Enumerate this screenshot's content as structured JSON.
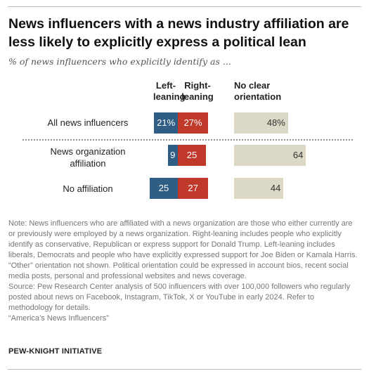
{
  "title": "News influencers with a news industry affiliation are less likely to explicitly express a political lean",
  "subtitle": "% of news influencers who explicitly identify as ...",
  "colors": {
    "left": "#2f5d84",
    "right": "#c0392b",
    "none": "#dcd8c8"
  },
  "chart_data": {
    "type": "bar",
    "orientation": "horizontal",
    "stacked": true,
    "categories": [
      "All news influencers",
      "News organization affiliation",
      "No affiliation"
    ],
    "series": [
      {
        "name": "Left-leaning",
        "values": [
          21,
          9,
          25
        ],
        "labels": [
          "21%",
          "9",
          "25"
        ]
      },
      {
        "name": "Right-leaning",
        "values": [
          27,
          25,
          27
        ],
        "labels": [
          "27%",
          "25",
          "27"
        ]
      },
      {
        "name": "No clear orientation",
        "values": [
          48,
          64,
          44
        ],
        "labels": [
          "48%",
          "64",
          "44"
        ]
      }
    ]
  },
  "column_headers": {
    "left": [
      "Left-",
      "leaning"
    ],
    "right": [
      "Right-",
      "leaning"
    ],
    "none": [
      "No clear",
      "orientation"
    ]
  },
  "row_labels": [
    [
      "All news influencers"
    ],
    [
      "News organization",
      "affiliation"
    ],
    [
      "No affiliation"
    ]
  ],
  "notes": [
    "Note: News influencers who are affiliated with a news organization are those who either currently are or previously were employed by a news organization. Right-leaning includes people who explicitly identify as conservative, Republican or express support for Donald Trump. Left-leaning includes liberals, Democrats and people who have explicitly expressed support for Joe Biden or Kamala Harris. “Other” orientation not shown. Political orientation could be expressed in account bios, recent social media posts, personal and professional websites and news coverage.",
    "Source: Pew Research Center analysis of 500 influencers with over 100,000 followers who regularly posted about news on Facebook, Instagram, TikTok, X or YouTube in early 2024. Refer to methodology for details.",
    "“America’s News Influencers”"
  ],
  "credit": "PEW-KNIGHT INITIATIVE"
}
